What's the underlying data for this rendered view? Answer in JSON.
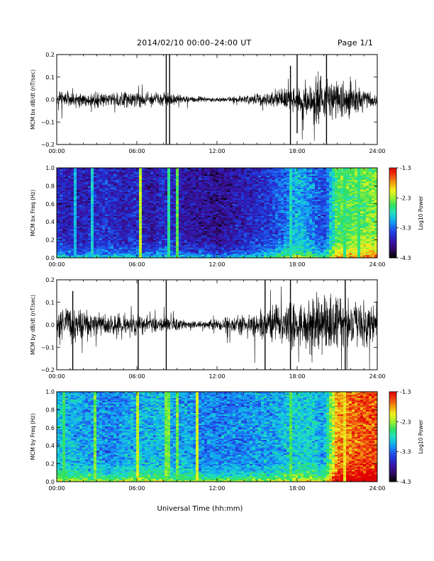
{
  "header": {
    "title": "2014/02/10   00:00–24:00 UT",
    "page": "Page 1/1"
  },
  "colors": {
    "trace": "#000000",
    "colormap": [
      "#000000",
      "#2a0a5a",
      "#3a10a0",
      "#2030d0",
      "#2060f0",
      "#10b0f0",
      "#20e0c0",
      "#30e060",
      "#a0f030",
      "#f0f020",
      "#f0a010",
      "#f04010",
      "#e00000"
    ]
  },
  "chart_data": [
    {
      "type": "line",
      "ylabel": "MCM bx dB/dt (nT/sec)",
      "ylim": [
        -0.2,
        0.2
      ],
      "yticks": [
        "0.2",
        "0.1",
        "0.0",
        "−0.1",
        "−0.2"
      ],
      "ytick_values": [
        0.2,
        0.1,
        0.0,
        -0.1,
        -0.2
      ],
      "xlim": [
        0,
        24
      ],
      "xticks": [
        "00:00",
        "06:00",
        "12:00",
        "18:00",
        "24:00"
      ],
      "xtick_values": [
        0,
        6,
        12,
        18,
        24
      ],
      "envelope": {
        "x": [
          0,
          1,
          2,
          3,
          4,
          5,
          6,
          7,
          8,
          9,
          10,
          11,
          12,
          13,
          14,
          15,
          16,
          17,
          18,
          19,
          20,
          21,
          22,
          23,
          24
        ],
        "amplitude": [
          0.06,
          0.055,
          0.05,
          0.05,
          0.045,
          0.05,
          0.05,
          0.045,
          0.045,
          0.03,
          0.02,
          0.018,
          0.015,
          0.02,
          0.025,
          0.04,
          0.05,
          0.07,
          0.09,
          0.13,
          0.15,
          0.14,
          0.12,
          0.07,
          0.05
        ]
      },
      "spikes": [
        {
          "x": 8.2,
          "low": -0.2,
          "high": 0.2
        },
        {
          "x": 8.45,
          "low": -0.2,
          "high": 0.2
        },
        {
          "x": 17.5,
          "low": -0.2,
          "high": 0.15
        },
        {
          "x": 18.0,
          "low": -0.15,
          "high": 0.2
        },
        {
          "x": 20.2,
          "low": -0.2,
          "high": 0.2
        }
      ]
    },
    {
      "type": "heatmap",
      "ylabel": "MCM bx Freq (Hz)",
      "ylim": [
        0.0,
        1.0
      ],
      "yticks": [
        "1.0",
        "0.8",
        "0.6",
        "0.4",
        "0.2",
        "0.0"
      ],
      "ytick_values": [
        1.0,
        0.8,
        0.6,
        0.4,
        0.2,
        0.0
      ],
      "xlim": [
        0,
        24
      ],
      "xticks": [
        "00:00",
        "06:00",
        "12:00",
        "18:00",
        "24:00"
      ],
      "xtick_values": [
        0,
        6,
        12,
        18,
        24
      ],
      "colorbar": {
        "label": "Log10 Power",
        "range": [
          -4.3,
          -1.3
        ],
        "ticks": [
          "-1.3",
          "-2.3",
          "-3.3",
          "-4.3"
        ],
        "tick_values": [
          -1.3,
          -2.3,
          -3.3,
          -4.3
        ]
      },
      "base_level": [
        -3.6,
        -3.7,
        -3.7,
        -3.6,
        -3.6,
        -3.7,
        -3.6,
        -3.8,
        -3.6,
        -3.7,
        -3.8,
        -3.8,
        -3.9,
        -3.8,
        -3.7,
        -3.6,
        -3.5,
        -3.3,
        -3.0,
        -3.2,
        -3.5,
        -2.5,
        -2.5,
        -2.4,
        -2.4
      ],
      "broadband_lines": [
        {
          "x": 1.4,
          "level": -3.0
        },
        {
          "x": 2.6,
          "level": -2.9
        },
        {
          "x": 6.2,
          "level": -2.2
        },
        {
          "x": 8.4,
          "level": -2.7
        },
        {
          "x": 9.0,
          "level": -2.5
        },
        {
          "x": 17.6,
          "level": -2.8
        },
        {
          "x": 21.6,
          "level": -2.6
        },
        {
          "x": 22.6,
          "level": -2.6
        }
      ]
    },
    {
      "type": "line",
      "ylabel": "MCM by dB/dt (nT/sec)",
      "ylim": [
        -0.2,
        0.2
      ],
      "yticks": [
        "0.2",
        "0.1",
        "0.0",
        "−0.1",
        "−0.2"
      ],
      "ytick_values": [
        0.2,
        0.1,
        0.0,
        -0.1,
        -0.2
      ],
      "xlim": [
        0,
        24
      ],
      "xticks": [
        "00:00",
        "06:00",
        "12:00",
        "18:00",
        "24:00"
      ],
      "xtick_values": [
        0,
        6,
        12,
        18,
        24
      ],
      "envelope": {
        "x": [
          0,
          1,
          2,
          3,
          4,
          5,
          6,
          7,
          8,
          9,
          10,
          11,
          12,
          13,
          14,
          15,
          16,
          17,
          18,
          19,
          20,
          21,
          22,
          23,
          24
        ],
        "amplitude": [
          0.09,
          0.1,
          0.1,
          0.08,
          0.07,
          0.07,
          0.07,
          0.05,
          0.05,
          0.04,
          0.03,
          0.025,
          0.04,
          0.05,
          0.07,
          0.1,
          0.12,
          0.14,
          0.16,
          0.17,
          0.18,
          0.18,
          0.17,
          0.16,
          0.14
        ]
      },
      "spikes": [
        {
          "x": 1.2,
          "low": -0.2,
          "high": 0.15
        },
        {
          "x": 6.1,
          "low": -0.2,
          "high": 0.2
        },
        {
          "x": 8.2,
          "low": -0.2,
          "high": 0.2
        },
        {
          "x": 15.6,
          "low": -0.2,
          "high": 0.2
        },
        {
          "x": 17.5,
          "low": -0.2,
          "high": 0.2
        },
        {
          "x": 21.6,
          "low": -0.2,
          "high": 0.2
        }
      ]
    },
    {
      "type": "heatmap",
      "ylabel": "MCM by Freq (Hz)",
      "ylim": [
        0.0,
        1.0
      ],
      "yticks": [
        "1.0",
        "0.8",
        "0.6",
        "0.4",
        "0.2",
        "0.0"
      ],
      "ytick_values": [
        1.0,
        0.8,
        0.6,
        0.4,
        0.2,
        0.0
      ],
      "xlim": [
        0,
        24
      ],
      "xticks": [
        "00:00",
        "06:00",
        "12:00",
        "18:00",
        "24:00"
      ],
      "xtick_values": [
        0,
        6,
        12,
        18,
        24
      ],
      "colorbar": {
        "label": "Log10 Power",
        "range": [
          -4.3,
          -1.3
        ],
        "ticks": [
          "-1.3",
          "-2.3",
          "-3.3",
          "-4.3"
        ],
        "tick_values": [
          -1.3,
          -2.3,
          -3.3,
          -4.3
        ]
      },
      "base_level": [
        -3.0,
        -3.0,
        -3.1,
        -3.1,
        -3.2,
        -3.1,
        -3.0,
        -3.0,
        -3.0,
        -3.1,
        -3.1,
        -3.2,
        -3.2,
        -3.2,
        -3.2,
        -3.1,
        -3.1,
        -3.0,
        -2.9,
        -2.9,
        -3.1,
        -1.8,
        -1.7,
        -1.6,
        -1.6
      ],
      "broadband_lines": [
        {
          "x": 0.6,
          "level": -2.6
        },
        {
          "x": 2.8,
          "level": -2.4
        },
        {
          "x": 6.1,
          "level": -2.2
        },
        {
          "x": 8.3,
          "level": -2.4
        },
        {
          "x": 9.0,
          "level": -2.4
        },
        {
          "x": 10.5,
          "level": -2.2
        },
        {
          "x": 17.6,
          "level": -2.5
        },
        {
          "x": 21.5,
          "level": -2.0
        }
      ]
    }
  ],
  "xaxis_title": "Universal Time (hh:mm)"
}
